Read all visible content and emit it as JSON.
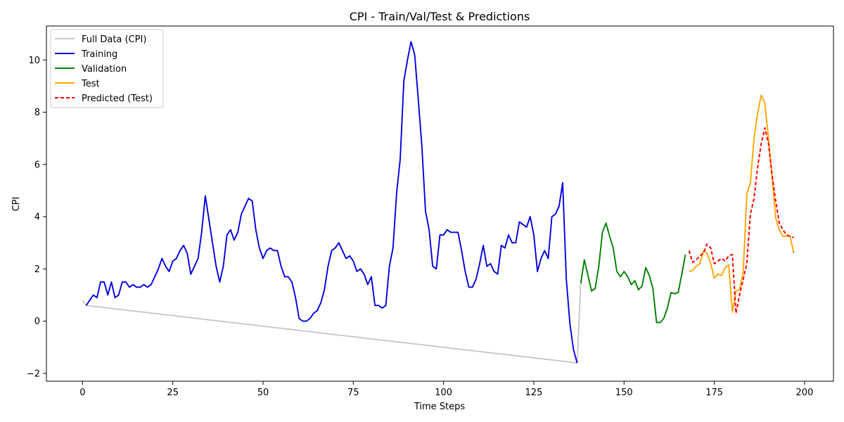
{
  "chart_data": {
    "type": "line",
    "title": "CPI - Train/Val/Test & Predictions",
    "xlabel": "Time Steps",
    "ylabel": "CPI",
    "xlim": [
      -10,
      208
    ],
    "ylim": [
      -2.3,
      11.3
    ],
    "xticks": [
      0,
      25,
      50,
      75,
      100,
      125,
      150,
      175,
      200
    ],
    "yticks": [
      -2,
      0,
      2,
      4,
      6,
      8,
      10
    ],
    "grid": false,
    "legend_position": "top-left",
    "series": [
      {
        "name": "Full Data (CPI)",
        "color": "#c8c8c8",
        "dash": false,
        "x": [
          0,
          1,
          137,
          138
        ],
        "y": [
          0.8,
          0.6,
          -1.6,
          1.45
        ]
      },
      {
        "name": "Training",
        "color": "#0000e0",
        "dash": false,
        "x": [
          1,
          2,
          3,
          4,
          5,
          6,
          7,
          8,
          9,
          10,
          11,
          12,
          13,
          14,
          15,
          16,
          17,
          18,
          19,
          20,
          21,
          22,
          23,
          24,
          25,
          26,
          27,
          28,
          29,
          30,
          31,
          32,
          33,
          34,
          35,
          36,
          37,
          38,
          39,
          40,
          41,
          42,
          43,
          44,
          45,
          46,
          47,
          48,
          49,
          50,
          51,
          52,
          53,
          54,
          55,
          56,
          57,
          58,
          59,
          60,
          61,
          62,
          63,
          64,
          65,
          66,
          67,
          68,
          69,
          70,
          71,
          72,
          73,
          74,
          75,
          76,
          77,
          78,
          79,
          80,
          81,
          82,
          83,
          84,
          85,
          86,
          87,
          88,
          89,
          90,
          91,
          92,
          93,
          94,
          95,
          96,
          97,
          98,
          99,
          100,
          101,
          102,
          103,
          104,
          105,
          106,
          107,
          108,
          109,
          110,
          111,
          112,
          113,
          114,
          115,
          116,
          117,
          118,
          119,
          120,
          121,
          122,
          123,
          124,
          125,
          126,
          127,
          128,
          129,
          130,
          131,
          132,
          133,
          134,
          135,
          136,
          137
        ],
        "y": [
          0.6,
          0.8,
          1.0,
          0.9,
          1.5,
          1.5,
          1.0,
          1.5,
          0.9,
          1.0,
          1.5,
          1.5,
          1.3,
          1.4,
          1.3,
          1.3,
          1.4,
          1.3,
          1.4,
          1.7,
          2.0,
          2.4,
          2.1,
          1.9,
          2.3,
          2.4,
          2.7,
          2.9,
          2.6,
          1.8,
          2.1,
          2.4,
          3.4,
          4.8,
          3.9,
          3.0,
          2.1,
          1.5,
          2.1,
          3.3,
          3.5,
          3.1,
          3.4,
          4.1,
          4.4,
          4.7,
          4.6,
          3.5,
          2.8,
          2.4,
          2.7,
          2.8,
          2.7,
          2.7,
          2.1,
          1.7,
          1.7,
          1.5,
          0.9,
          0.1,
          0.0,
          0.0,
          0.1,
          0.3,
          0.4,
          0.7,
          1.2,
          2.1,
          2.7,
          2.8,
          3.0,
          2.7,
          2.4,
          2.5,
          2.3,
          1.9,
          2.0,
          1.8,
          1.4,
          1.7,
          0.6,
          0.6,
          0.5,
          0.6,
          2.1,
          2.8,
          4.9,
          6.2,
          9.2,
          10.0,
          10.7,
          10.2,
          8.5,
          6.7,
          4.2,
          3.5,
          2.1,
          2.0,
          3.3,
          3.3,
          3.5,
          3.4,
          3.4,
          3.4,
          2.7,
          1.9,
          1.3,
          1.3,
          1.6,
          2.2,
          2.9,
          2.1,
          2.2,
          1.9,
          1.8,
          2.9,
          2.8,
          3.3,
          3.0,
          3.0,
          3.8,
          3.7,
          3.6,
          4.0,
          3.3,
          1.9,
          2.4,
          2.7,
          2.4,
          4.0,
          4.1,
          4.4,
          5.3,
          1.6,
          -0.1,
          -1.1,
          -1.6
        ]
      },
      {
        "name": "Validation",
        "color": "#008000",
        "dash": false,
        "x": [
          138,
          139,
          140,
          141,
          142,
          143,
          144,
          145,
          146,
          147,
          148,
          149,
          150,
          151,
          152,
          153,
          154,
          155,
          156,
          157,
          158,
          159,
          160,
          161,
          162,
          163,
          164,
          165,
          166,
          167
        ],
        "y": [
          1.45,
          2.35,
          1.75,
          1.15,
          1.25,
          2.1,
          3.4,
          3.75,
          3.25,
          2.8,
          1.9,
          1.7,
          1.9,
          1.7,
          1.4,
          1.55,
          1.2,
          1.35,
          2.05,
          1.75,
          1.25,
          -0.05,
          -0.05,
          0.1,
          0.5,
          1.1,
          1.05,
          1.1,
          1.8,
          2.55
        ]
      },
      {
        "name": "Test",
        "color": "#ffa500",
        "dash": false,
        "x": [
          168,
          169,
          170,
          171,
          172,
          173,
          174,
          175,
          176,
          177,
          178,
          179,
          180,
          181,
          182,
          183,
          184,
          185,
          186,
          187,
          188,
          189,
          190,
          191,
          192,
          193,
          194,
          195,
          196,
          197
        ],
        "y": [
          1.9,
          1.95,
          2.1,
          2.2,
          2.7,
          2.6,
          2.2,
          1.65,
          1.8,
          1.75,
          2.05,
          2.15,
          0.35,
          1.15,
          1.2,
          1.9,
          4.85,
          5.3,
          7.0,
          7.95,
          8.65,
          8.35,
          7.0,
          5.55,
          3.95,
          3.5,
          3.25,
          3.25,
          3.25,
          2.6
        ]
      },
      {
        "name": "Predicted (Test)",
        "color": "#ff0000",
        "dash": true,
        "x": [
          168,
          169,
          170,
          171,
          172,
          173,
          174,
          175,
          176,
          177,
          178,
          179,
          180,
          181,
          182,
          183,
          184,
          185,
          186,
          187,
          188,
          189,
          190,
          191,
          192,
          193,
          194,
          195,
          196,
          197
        ],
        "y": [
          2.7,
          2.25,
          2.35,
          2.5,
          2.6,
          2.95,
          2.8,
          2.2,
          2.3,
          2.4,
          2.3,
          2.5,
          2.55,
          0.3,
          1.0,
          1.6,
          2.2,
          4.1,
          4.7,
          5.9,
          6.8,
          7.4,
          6.8,
          5.6,
          4.6,
          3.75,
          3.5,
          3.3,
          3.25,
          3.2
        ]
      }
    ]
  }
}
